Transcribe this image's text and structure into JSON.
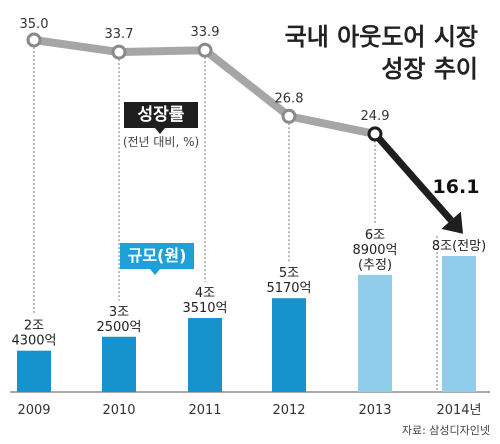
{
  "title_line1": "국내 아웃도어 시장",
  "title_line2": "성장 추이",
  "growth_label": "성장률",
  "growth_unit": "(전년 대비, %)",
  "size_label": "규모(원)",
  "source": "자료: 삼성디자인넷",
  "chart_data": {
    "type": "bar",
    "categories": [
      "2009",
      "2010",
      "2011",
      "2012",
      "2013",
      "2014년"
    ],
    "series": [
      {
        "name": "규모(원)",
        "values": [
          2.43,
          3.25,
          4.351,
          5.517,
          6.89,
          8.0
        ],
        "labels": [
          [
            "2조",
            "4300억"
          ],
          [
            "3조",
            "2500억"
          ],
          [
            "4조",
            "3510억"
          ],
          [
            "5조",
            "5170억"
          ],
          [
            "6조",
            "8900억",
            "(추정)"
          ],
          [
            "8조(전망)"
          ]
        ],
        "colors": [
          "#1692cc",
          "#1692cc",
          "#1692cc",
          "#1692cc",
          "#8fcdea",
          "#8fcdea"
        ]
      },
      {
        "name": "성장률",
        "type": "line",
        "values": [
          35.0,
          33.7,
          33.9,
          26.8,
          24.9,
          16.1
        ],
        "labels": [
          "35.0",
          "33.7",
          "33.9",
          "26.8",
          "24.9",
          "16.1"
        ]
      }
    ],
    "colors": {
      "actual_bar": "#1692cc",
      "estimate_bar": "#8fcdea",
      "line": "#a6a6a6",
      "forecast_line": "#1e1e1e"
    }
  }
}
